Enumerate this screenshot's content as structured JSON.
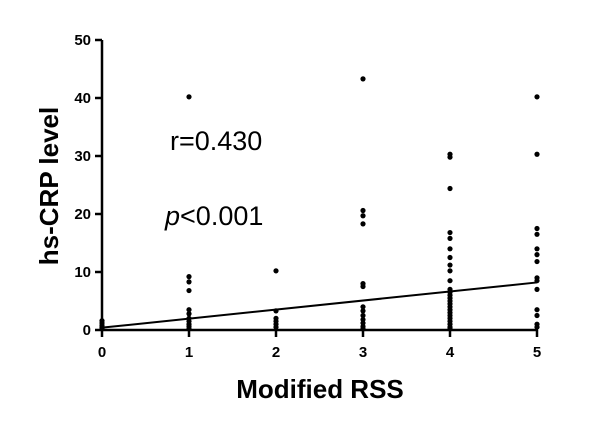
{
  "chart_data": {
    "type": "scatter",
    "xlabel": "Modified RSS",
    "ylabel": "hs-CRP level",
    "xlim": [
      0,
      5
    ],
    "ylim": [
      0,
      50
    ],
    "x_ticks": [
      "0",
      "1",
      "2",
      "3",
      "4",
      "5"
    ],
    "y_ticks": [
      "0",
      "10",
      "20",
      "30",
      "40",
      "50"
    ],
    "grid": false,
    "annotations": {
      "r_text": "r=0.430",
      "p_symbol": "p",
      "p_value": "<0.001"
    },
    "points": [
      {
        "x": 0,
        "y": 0.2
      },
      {
        "x": 0,
        "y": 0.5
      },
      {
        "x": 0,
        "y": 0.8
      },
      {
        "x": 0,
        "y": 1.2
      },
      {
        "x": 0,
        "y": 1.6
      },
      {
        "x": 1,
        "y": 40.2
      },
      {
        "x": 1,
        "y": 9.2
      },
      {
        "x": 1,
        "y": 8.3
      },
      {
        "x": 1,
        "y": 6.8
      },
      {
        "x": 1,
        "y": 3.5
      },
      {
        "x": 1,
        "y": 2.8
      },
      {
        "x": 1,
        "y": 2.0
      },
      {
        "x": 1,
        "y": 1.5
      },
      {
        "x": 1,
        "y": 1.0
      },
      {
        "x": 1,
        "y": 0.6
      },
      {
        "x": 1,
        "y": 0.2
      },
      {
        "x": 2,
        "y": 10.2
      },
      {
        "x": 2,
        "y": 3.3
      },
      {
        "x": 2,
        "y": 2.0
      },
      {
        "x": 2,
        "y": 1.5
      },
      {
        "x": 2,
        "y": 1.0
      },
      {
        "x": 2,
        "y": 0.5
      },
      {
        "x": 3,
        "y": 43.3
      },
      {
        "x": 3,
        "y": 20.6
      },
      {
        "x": 3,
        "y": 19.7
      },
      {
        "x": 3,
        "y": 18.3
      },
      {
        "x": 3,
        "y": 8.0
      },
      {
        "x": 3,
        "y": 7.5
      },
      {
        "x": 3,
        "y": 4.0
      },
      {
        "x": 3,
        "y": 3.3
      },
      {
        "x": 3,
        "y": 2.5
      },
      {
        "x": 3,
        "y": 1.8
      },
      {
        "x": 3,
        "y": 1.2
      },
      {
        "x": 3,
        "y": 0.6
      },
      {
        "x": 3,
        "y": 0.2
      },
      {
        "x": 4,
        "y": 30.3
      },
      {
        "x": 4,
        "y": 29.8
      },
      {
        "x": 4,
        "y": 24.4
      },
      {
        "x": 4,
        "y": 16.8
      },
      {
        "x": 4,
        "y": 15.8
      },
      {
        "x": 4,
        "y": 14.0
      },
      {
        "x": 4,
        "y": 12.5
      },
      {
        "x": 4,
        "y": 11.2
      },
      {
        "x": 4,
        "y": 10.2
      },
      {
        "x": 4,
        "y": 8.5
      },
      {
        "x": 4,
        "y": 7.0
      },
      {
        "x": 4,
        "y": 6.5
      },
      {
        "x": 4,
        "y": 6.0
      },
      {
        "x": 4,
        "y": 5.5
      },
      {
        "x": 4,
        "y": 5.0
      },
      {
        "x": 4,
        "y": 4.5
      },
      {
        "x": 4,
        "y": 4.0
      },
      {
        "x": 4,
        "y": 3.5
      },
      {
        "x": 4,
        "y": 3.0
      },
      {
        "x": 4,
        "y": 2.5
      },
      {
        "x": 4,
        "y": 2.0
      },
      {
        "x": 4,
        "y": 1.5
      },
      {
        "x": 4,
        "y": 1.0
      },
      {
        "x": 4,
        "y": 0.5
      },
      {
        "x": 4,
        "y": 0.2
      },
      {
        "x": 5,
        "y": 40.2
      },
      {
        "x": 5,
        "y": 30.3
      },
      {
        "x": 5,
        "y": 17.5
      },
      {
        "x": 5,
        "y": 16.5
      },
      {
        "x": 5,
        "y": 14.0
      },
      {
        "x": 5,
        "y": 13.0
      },
      {
        "x": 5,
        "y": 11.8
      },
      {
        "x": 5,
        "y": 9.0
      },
      {
        "x": 5,
        "y": 8.5
      },
      {
        "x": 5,
        "y": 7.0
      },
      {
        "x": 5,
        "y": 3.5
      },
      {
        "x": 5,
        "y": 2.5
      },
      {
        "x": 5,
        "y": 1.0
      },
      {
        "x": 5,
        "y": 0.5
      }
    ],
    "regression": {
      "x0": 0,
      "y0": 0.4,
      "x1": 5,
      "y1": 8.2
    },
    "colors": {
      "point": "#000000",
      "line": "#000000",
      "axis": "#000000"
    }
  }
}
